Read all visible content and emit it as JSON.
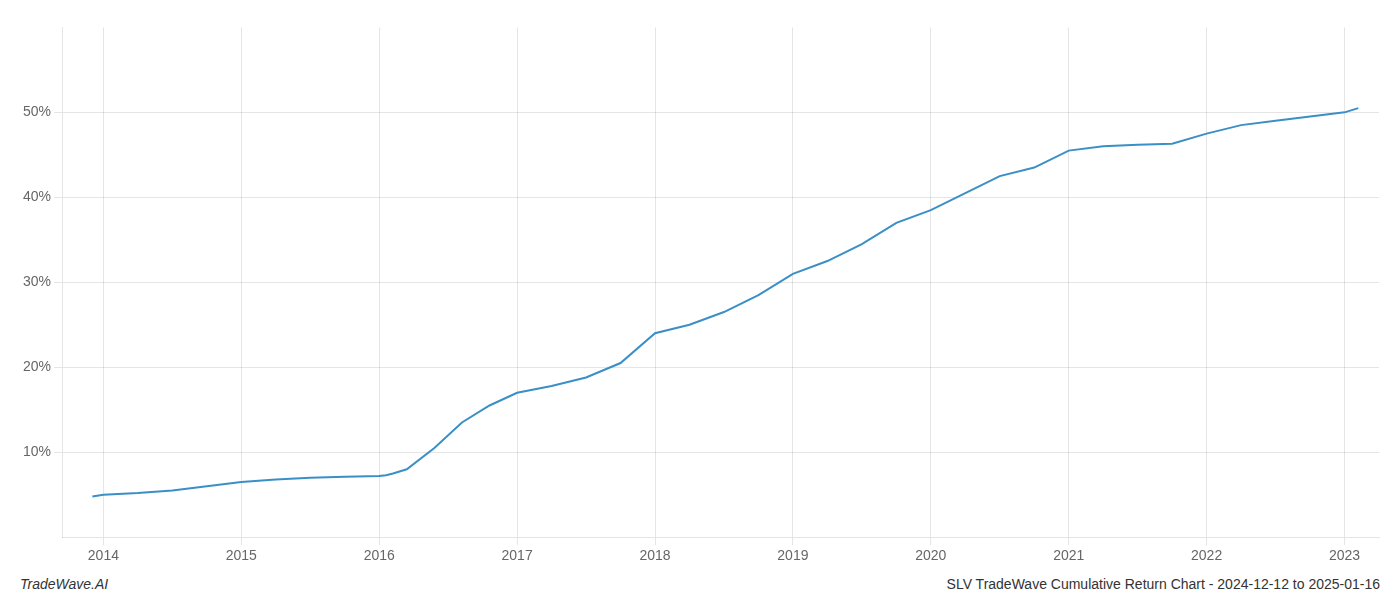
{
  "chart_data": {
    "type": "line",
    "x": [
      2013.92,
      2014.0,
      2014.25,
      2014.5,
      2014.75,
      2015.0,
      2015.25,
      2015.5,
      2015.75,
      2016.0,
      2016.05,
      2016.1,
      2016.2,
      2016.4,
      2016.6,
      2016.8,
      2017.0,
      2017.25,
      2017.5,
      2017.75,
      2018.0,
      2018.25,
      2018.5,
      2018.75,
      2019.0,
      2019.25,
      2019.5,
      2019.75,
      2020.0,
      2020.25,
      2020.5,
      2020.75,
      2021.0,
      2021.25,
      2021.5,
      2021.75,
      2022.0,
      2022.25,
      2022.5,
      2022.75,
      2023.0,
      2023.1
    ],
    "values": [
      4.8,
      5.0,
      5.2,
      5.5,
      6.0,
      6.5,
      6.8,
      7.0,
      7.1,
      7.2,
      7.3,
      7.5,
      8.0,
      10.5,
      13.5,
      15.5,
      17.0,
      17.8,
      18.8,
      20.5,
      24.0,
      25.0,
      26.5,
      28.5,
      31.0,
      32.5,
      34.5,
      37.0,
      38.5,
      40.5,
      42.5,
      43.5,
      45.5,
      46.0,
      46.2,
      46.3,
      47.5,
      48.5,
      49.0,
      49.5,
      50.0,
      50.5
    ],
    "color": "#3a8fc7",
    "xlim": [
      2013.7,
      2023.25
    ],
    "ylim": [
      0,
      60
    ],
    "xticks": [
      2014,
      2015,
      2016,
      2017,
      2018,
      2019,
      2020,
      2021,
      2022,
      2023
    ],
    "yticks": [
      {
        "value": 10,
        "label": "10%"
      },
      {
        "value": 20,
        "label": "20%"
      },
      {
        "value": 30,
        "label": "30%"
      },
      {
        "value": 40,
        "label": "40%"
      },
      {
        "value": 50,
        "label": "50%"
      }
    ],
    "grid": true,
    "annotations": [
      "TradeWave.AI",
      "SLV TradeWave Cumulative Return Chart - 2024-12-12 to 2025-01-16"
    ]
  }
}
